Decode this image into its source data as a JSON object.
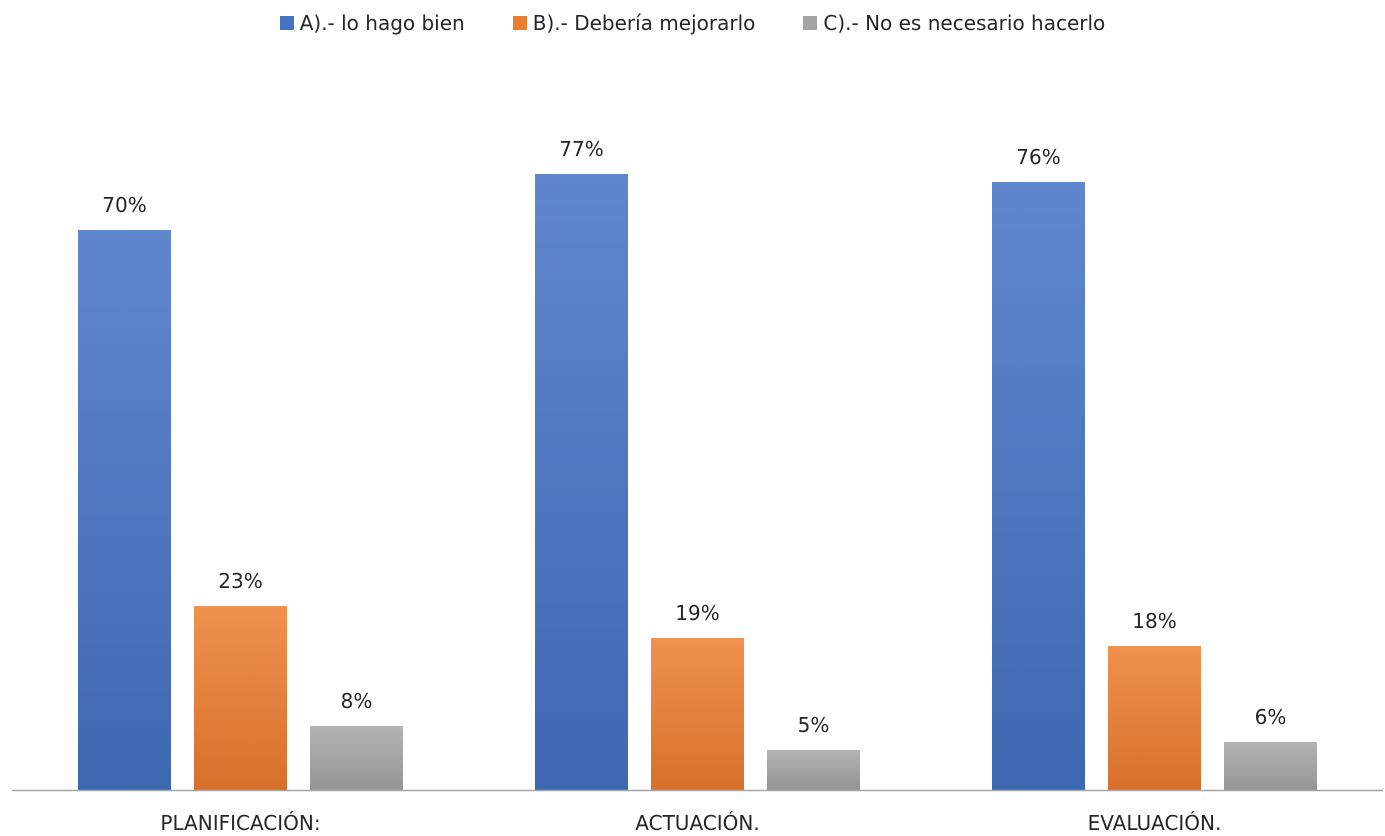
{
  "chart_data": {
    "type": "bar",
    "categories": [
      "PLANIFICACIÓN:",
      "ACTUACIÓN.",
      "EVALUACIÓN."
    ],
    "series": [
      {
        "name": "A).- lo hago bien",
        "values": [
          70,
          77,
          76
        ],
        "labels": [
          "70%",
          "77%",
          "76%"
        ],
        "color": "#4472c4"
      },
      {
        "name": "B).- Debería mejorarlo",
        "values": [
          23,
          19,
          18
        ],
        "labels": [
          "23%",
          "19%",
          "18%"
        ],
        "color": "#ed7d31"
      },
      {
        "name": "C).- No es necesario hacerlo",
        "values": [
          8,
          5,
          6
        ],
        "labels": [
          "8%",
          "5%",
          "6%"
        ],
        "color": "#a5a5a5"
      }
    ],
    "title": "",
    "xlabel": "",
    "ylabel": "",
    "ylim": [
      0,
      90
    ],
    "legend_position": "top",
    "grid": false
  }
}
